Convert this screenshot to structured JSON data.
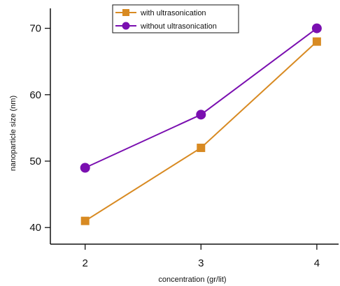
{
  "chart_data": {
    "type": "line",
    "title": "",
    "xlabel": "concentration (gr/lit)",
    "ylabel": "nanoparticle size (nm)",
    "x": [
      2,
      3,
      4
    ],
    "x_tick_labels": [
      "2",
      "3",
      "4"
    ],
    "y_tick_labels": [
      "40",
      "50",
      "60",
      "70"
    ],
    "y_ticks": [
      40,
      50,
      60,
      70
    ],
    "xlim": [
      1.7,
      4.2
    ],
    "ylim": [
      37.5,
      73
    ],
    "grid": false,
    "legend_position": "top-center",
    "series": [
      {
        "name": "with ultrasonication",
        "values": [
          41,
          52,
          68
        ],
        "color": "#d88a22",
        "marker": "square"
      },
      {
        "name": "without ultrasonication",
        "values": [
          49,
          57,
          70
        ],
        "color": "#7a0fb0",
        "marker": "circle"
      }
    ]
  }
}
